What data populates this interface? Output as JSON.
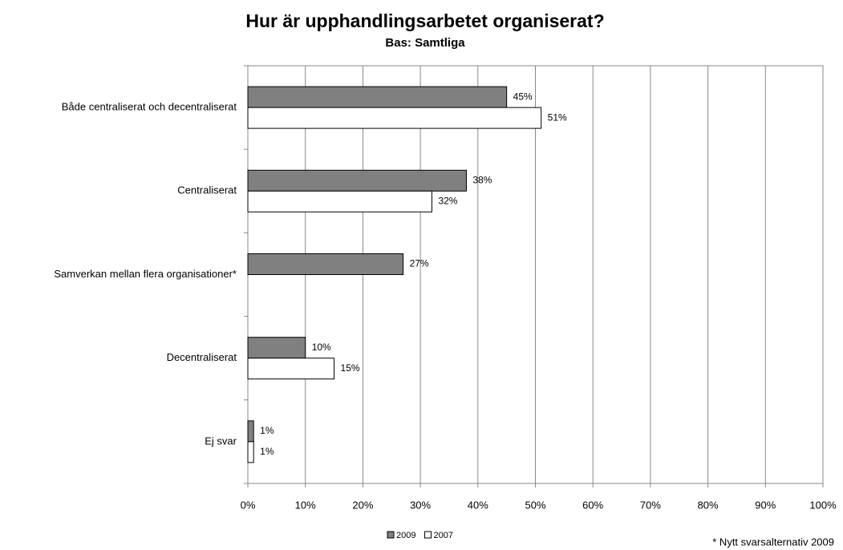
{
  "chart_data": {
    "type": "hbar",
    "title": "Hur är upphandlingsarbetet organiserat?",
    "subtitle": "Bas: Samtliga",
    "annotation": "* Nytt svarsalternativ 2009",
    "categories": [
      "Både centraliserat och decentraliserat",
      "Centraliserat",
      "Samverkan mellan flera organisationer*",
      "Decentraliserat",
      "Ej svar"
    ],
    "series": [
      {
        "name": "2009",
        "color": "#808080",
        "values": [
          45,
          38,
          27,
          10,
          1
        ],
        "value_labels": [
          "45%",
          "38%",
          "27%",
          "10%",
          "1%"
        ]
      },
      {
        "name": "2007",
        "color": "#ffffff",
        "values": [
          51,
          32,
          null,
          15,
          1
        ],
        "value_labels": [
          "51%",
          "32%",
          null,
          "15%",
          "1%"
        ]
      }
    ],
    "xlim": [
      0,
      100
    ],
    "xticks": [
      {
        "value": 0,
        "label": "0%"
      },
      {
        "value": 10,
        "label": "10%"
      },
      {
        "value": 20,
        "label": "20%"
      },
      {
        "value": 30,
        "label": "30%"
      },
      {
        "value": 40,
        "label": "40%"
      },
      {
        "value": 50,
        "label": "50%"
      },
      {
        "value": 60,
        "label": "60%"
      },
      {
        "value": 70,
        "label": "70%"
      },
      {
        "value": 80,
        "label": "80%"
      },
      {
        "value": 90,
        "label": "90%"
      },
      {
        "value": 100,
        "label": "100%"
      }
    ],
    "grid": true,
    "legend": "bottom"
  }
}
